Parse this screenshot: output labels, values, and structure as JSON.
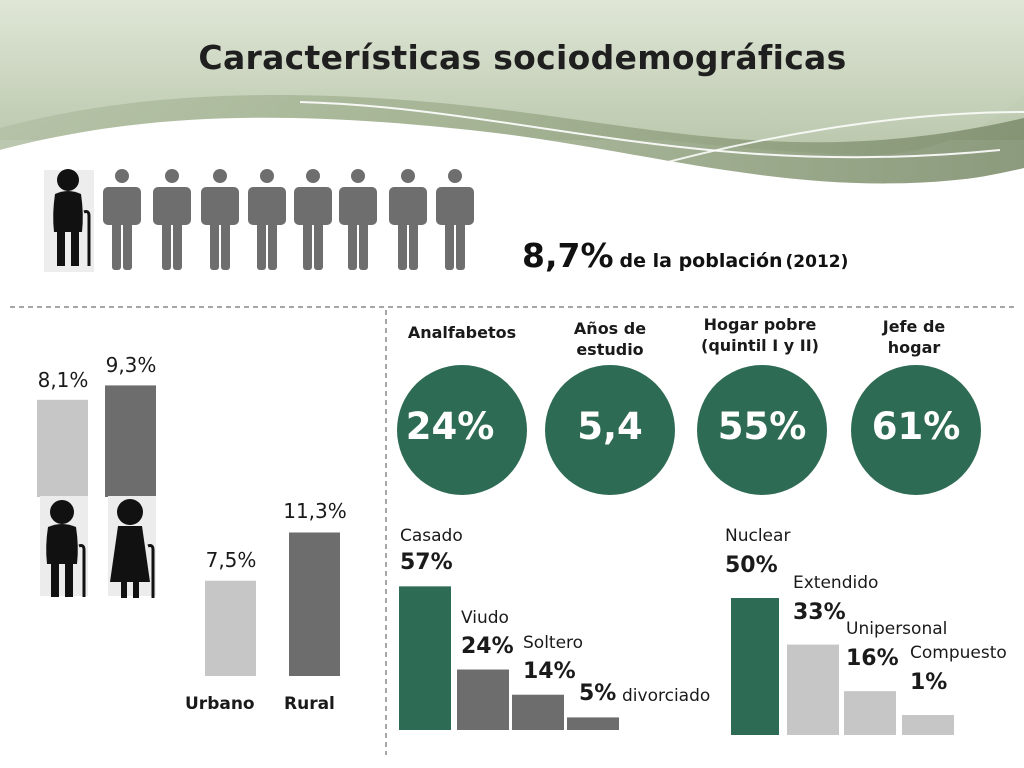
{
  "title": "Características sociodemográficas",
  "headline": {
    "value": "8,7%",
    "text": "de la población",
    "year": "(2012)"
  },
  "colors": {
    "green": "#2e6b55",
    "dark_gray": "#6d6d6d",
    "light_gray": "#c6c6c6",
    "figure_gray": "#6e6e6e"
  },
  "icons": [
    "elderly-man-icon",
    "person-icon",
    "elderly-woman-icon"
  ],
  "chart_data": [
    {
      "type": "table",
      "items": [
        {
          "label": "Analfabetos",
          "value": "24%"
        },
        {
          "label": "Años de estudio",
          "value": "5,4"
        },
        {
          "label": "Hogar pobre (quintil I y II)",
          "value": "55%"
        },
        {
          "label": "Jefe de hogar",
          "value": "61%"
        }
      ],
      "captions": {
        "analfabetos": [
          "Analfabetos"
        ],
        "anos": [
          "Años de",
          "estudio"
        ],
        "hogar": [
          "Hogar pobre",
          "(quintil I y II)"
        ],
        "jefe": [
          "Jefe de",
          "hogar"
        ]
      },
      "values": {
        "analfabetos": "24%",
        "anos": "5,4",
        "hogar": "55%",
        "jefe": "61%"
      }
    },
    {
      "type": "bar",
      "categories": [
        "elderly-man-icon",
        "elderly-woman-icon"
      ],
      "values": [
        8.1,
        9.3
      ],
      "labels": [
        "8,1%",
        "9,3%"
      ]
    },
    {
      "type": "bar",
      "categories": [
        "Urbano",
        "Rural"
      ],
      "values": [
        7.5,
        11.3
      ],
      "labels": [
        "7,5%",
        "11,3%"
      ]
    },
    {
      "type": "bar",
      "categories": [
        "Casado",
        "Viudo",
        "Soltero",
        "divorciado"
      ],
      "values": [
        57,
        24,
        14,
        5
      ],
      "labels": [
        "57%",
        "24%",
        "14%",
        "5%"
      ]
    },
    {
      "type": "bar",
      "categories": [
        "Nuclear",
        "Extendido",
        "Unipersonal",
        "Compuesto"
      ],
      "values": [
        50,
        33,
        16,
        1
      ],
      "labels": [
        "50%",
        "33%",
        "16%",
        "1%"
      ]
    }
  ]
}
